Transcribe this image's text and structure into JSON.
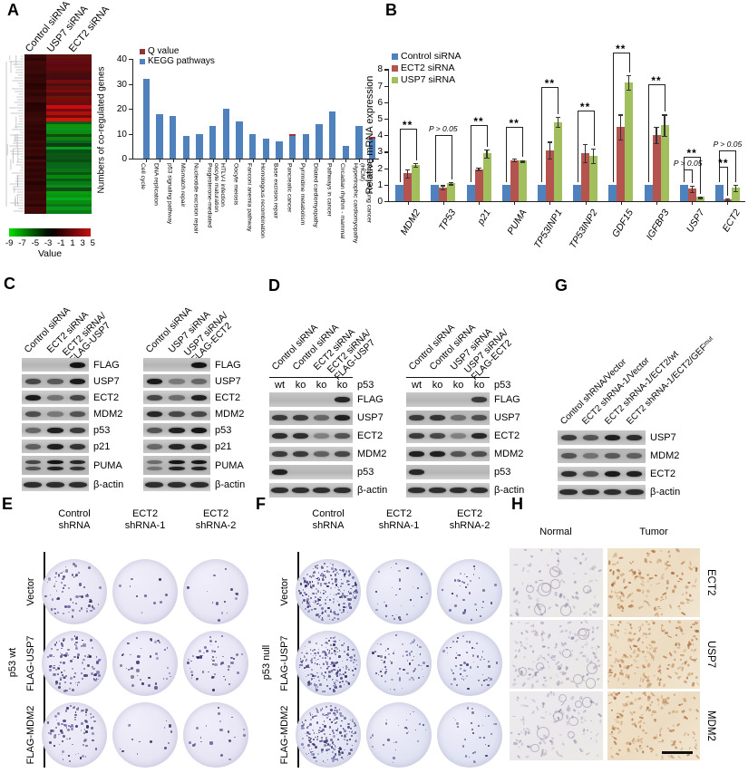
{
  "panels": {
    "A": {
      "letter": "A"
    },
    "B": {
      "letter": "B"
    },
    "C": {
      "letter": "C"
    },
    "D": {
      "letter": "D"
    },
    "E": {
      "letter": "E"
    },
    "F": {
      "letter": "F"
    },
    "G": {
      "letter": "G"
    },
    "H": {
      "letter": "H"
    }
  },
  "heatmap": {
    "col_labels": [
      "Control siRNA",
      "USP7 siRNA",
      "ECT2 siRNA"
    ],
    "scale_ticks": [
      "-9",
      "-7",
      "-5",
      "-3",
      "-1",
      "1",
      "3",
      "5"
    ],
    "scale_title": "Value",
    "colors": {
      "low": "#00d400",
      "mid": "#000000",
      "high": "#c01414",
      "control_col": "#300505"
    }
  },
  "chart_data": [
    {
      "id": "kegg",
      "type": "bar",
      "ylabel": "Numbers of co-regulated genes",
      "ylim": [
        0,
        40
      ],
      "yticks": [
        0,
        10,
        20,
        30,
        40
      ],
      "legend": [
        {
          "label": "Q value",
          "color": "#8e3634"
        },
        {
          "label": "KEGG pathways",
          "color": "#4f81bd"
        }
      ],
      "categories": [
        "Cell cycle",
        "DNA replication",
        "p53 signaling pathway",
        "Mismatch repair",
        "Nucleotide excision repair",
        "Progesterone-mediated\noocyte maturation",
        "HTLV-I infection",
        "Oocyte meiosis",
        "Fanconi anemia pathway",
        "Homologous recombination",
        "Base excision repair",
        "Pancreatic cancer",
        "Pyrimidine metabolism",
        "Dilated cardiomyopathy",
        "Pathways in cancer",
        "Circadian rhythm - mammal",
        "Hypertrophic cardiomyopathy\n(HCM)",
        "Small cell lung cancer"
      ],
      "values": [
        32,
        18,
        17,
        9,
        10,
        13,
        20,
        15,
        10,
        8,
        7,
        9,
        10,
        14,
        19,
        5,
        13,
        8
      ],
      "bar_color": "#4f81bd",
      "q_color": "#a33230",
      "q_marks": [
        11,
        17
      ]
    },
    {
      "id": "mrna",
      "type": "grouped-bar",
      "ylabel": "Relative mRNA expression",
      "ylim": [
        0,
        8
      ],
      "yticks": [
        0,
        1,
        2,
        3,
        4,
        5,
        6,
        7,
        8
      ],
      "legend": [
        {
          "label": "Control siRNA",
          "color": "#4f81bd"
        },
        {
          "label": "ECT2 siRNA",
          "color": "#b5534f"
        },
        {
          "label": "USP7 siRNA",
          "color": "#a2bf5e"
        }
      ],
      "categories": [
        "MDM2",
        "TP53",
        "p21",
        "PUMA",
        "TP53INP1",
        "TP53INP2",
        "GDF15",
        "IGFBP3",
        "USP7",
        "ECT2"
      ],
      "series": [
        {
          "name": "Control siRNA",
          "color": "#4f81bd",
          "values": [
            1,
            1,
            1,
            1,
            1,
            1,
            1,
            1,
            1,
            1
          ],
          "errors": [
            0,
            0,
            0,
            0,
            0,
            0,
            0,
            0,
            0,
            0
          ]
        },
        {
          "name": "ECT2 siRNA",
          "color": "#b5534f",
          "values": [
            1.7,
            0.85,
            1.95,
            2.5,
            3.1,
            2.9,
            4.5,
            4.0,
            0.75,
            0.12
          ],
          "errors": [
            0.25,
            0.12,
            0.07,
            0.08,
            0.5,
            0.55,
            0.75,
            0.5,
            0.2,
            0.04
          ]
        },
        {
          "name": "USP7 siRNA",
          "color": "#a2bf5e",
          "values": [
            2.2,
            1.1,
            2.9,
            2.45,
            4.8,
            2.75,
            7.2,
            4.6,
            0.25,
            0.8
          ],
          "errors": [
            0.12,
            0.08,
            0.25,
            0.05,
            0.3,
            0.45,
            0.45,
            0.65,
            0.05,
            0.18
          ]
        }
      ],
      "annotations": [
        [
          {
            "text": "**",
            "from": 0,
            "to": 2,
            "h": 4.4
          }
        ],
        [
          {
            "text": "P > 0.05",
            "from": 0,
            "to": 2,
            "h": 4.0
          }
        ],
        [
          {
            "text": "**",
            "from": 0,
            "to": 2,
            "h": 4.6
          }
        ],
        [
          {
            "text": "**",
            "from": 0,
            "to": 2,
            "h": 4.5
          }
        ],
        [
          {
            "text": "**",
            "from": 0,
            "to": 2,
            "h": 6.9
          }
        ],
        [
          {
            "text": "**",
            "from": 0,
            "to": 2,
            "h": 5.5
          }
        ],
        [
          {
            "text": "**",
            "from": 0,
            "to": 2,
            "h": 9.0
          }
        ],
        [
          {
            "text": "**",
            "from": 0,
            "to": 2,
            "h": 7.1
          }
        ],
        [
          {
            "text": "**",
            "from": 0,
            "to": 2,
            "h": 2.7
          },
          {
            "text": "P > 0.05",
            "from": 0,
            "to": 1,
            "h": 1.9
          }
        ],
        [
          {
            "text": "P > 0.05",
            "from": 0,
            "to": 2,
            "h": 3.1
          },
          {
            "text": "**",
            "from": 0,
            "to": 1,
            "h": 2.1
          }
        ]
      ]
    }
  ],
  "blots": {
    "C_left": {
      "lanes": [
        "Control siRNA",
        "ECT2 siRNA",
        "ECT2 siRNA/\nFLAG-USP7"
      ],
      "rows": [
        {
          "label": "FLAG",
          "bands": [
            0,
            0,
            1
          ]
        },
        {
          "label": "USP7",
          "bands": [
            0.6,
            0.45,
            0.95
          ]
        },
        {
          "label": "ECT2",
          "bands": [
            0.95,
            0.25,
            0.6
          ]
        },
        {
          "label": "MDM2",
          "bands": [
            0.55,
            0.2,
            0.5
          ]
        },
        {
          "label": "p53",
          "bands": [
            0.35,
            0.9,
            0.7
          ]
        },
        {
          "label": "p21",
          "bands": [
            0.4,
            0.9,
            0.75
          ]
        },
        {
          "label": "PUMA",
          "bands": [
            0.6,
            1,
            0.85
          ],
          "doublet": true
        },
        {
          "label": "β-actin",
          "bands": [
            0.8,
            0.8,
            0.8
          ]
        }
      ]
    },
    "C_right": {
      "lanes": [
        "Control siRNA",
        "USP7 siRNA",
        "USP7 siRNA/\nFLAG-ECT2"
      ],
      "rows": [
        {
          "label": "FLAG",
          "bands": [
            0,
            0,
            1
          ]
        },
        {
          "label": "USP7",
          "bands": [
            0.95,
            0.2,
            0.35
          ]
        },
        {
          "label": "ECT2",
          "bands": [
            0.6,
            0.3,
            0.9
          ]
        },
        {
          "label": "MDM2",
          "bands": [
            0.85,
            0.6,
            0.6
          ]
        },
        {
          "label": "p53",
          "bands": [
            0.5,
            0.9,
            1
          ]
        },
        {
          "label": "p21",
          "bands": [
            0.35,
            0.85,
            0.9
          ]
        },
        {
          "label": "PUMA",
          "bands": [
            0.3,
            1,
            1
          ],
          "doublet": true
        },
        {
          "label": "β-actin",
          "bands": [
            0.8,
            0.8,
            0.8
          ]
        }
      ]
    },
    "D_left": {
      "lanes": [
        "Control siRNA",
        "Control siRNA",
        "ECT2 siRNA",
        "ECT2 siRNA/\nFLAG-USP7"
      ],
      "genotypes": [
        "wt",
        "ko",
        "ko",
        "ko"
      ],
      "genotype_label": "p53",
      "rows": [
        {
          "label": "FLAG",
          "bands": [
            0,
            0,
            0,
            0.85
          ]
        },
        {
          "label": "USP7",
          "bands": [
            0.7,
            0.7,
            0.35,
            0.9
          ]
        },
        {
          "label": "ECT2",
          "bands": [
            0.8,
            0.8,
            0.15,
            0.5
          ]
        },
        {
          "label": "MDM2",
          "bands": [
            0.7,
            0.7,
            0.4,
            0.6
          ]
        },
        {
          "label": "p53",
          "bands": [
            0.9,
            0,
            0,
            0
          ]
        },
        {
          "label": "β-actin",
          "bands": [
            0.8,
            0.8,
            0.8,
            0.8
          ]
        }
      ]
    },
    "D_right": {
      "lanes": [
        "Control siRNA",
        "Control siRNA",
        "USP7 siRNA",
        "USP7 siRNA/\nFLAG-ECT2"
      ],
      "genotypes": [
        "wt",
        "ko",
        "ko",
        "ko"
      ],
      "genotype_label": "p53",
      "rows": [
        {
          "label": "FLAG",
          "bands": [
            0,
            0,
            0,
            0.7
          ]
        },
        {
          "label": "USP7",
          "bands": [
            0.7,
            0.75,
            0.3,
            0.55
          ]
        },
        {
          "label": "ECT2",
          "bands": [
            0.7,
            0.6,
            0.15,
            0.85
          ]
        },
        {
          "label": "MDM2",
          "bands": [
            0.9,
            0.9,
            0.5,
            0.55
          ]
        },
        {
          "label": "p53",
          "bands": [
            0.85,
            0,
            0,
            0
          ]
        },
        {
          "label": "β-actin",
          "bands": [
            0.8,
            0.8,
            0.8,
            0.8
          ]
        }
      ]
    },
    "G": {
      "lanes": [
        "Control shRNA/Vector",
        "ECT2 shRNA-1/Vector",
        "ECT2 shRNA-1/ECT2/wt",
        "ECT2 shRNA-1/ECT2/GEFᵐᵘᵗ"
      ],
      "rows": [
        {
          "label": "USP7",
          "bands": [
            0.7,
            0.5,
            0.9,
            0.8
          ]
        },
        {
          "label": "MDM2",
          "bands": [
            0.5,
            0.25,
            0.45,
            0.4
          ]
        },
        {
          "label": "ECT2",
          "bands": [
            0.8,
            0.5,
            0.95,
            0.9
          ]
        },
        {
          "label": "β-actin",
          "bands": [
            0.8,
            0.8,
            0.8,
            0.8
          ]
        }
      ]
    }
  },
  "colonies": {
    "E": {
      "col_labels": [
        "Control\nshRNA",
        "ECT2\nshRNA-1",
        "ECT2\nshRNA-2"
      ],
      "row_labels": [
        "Vector",
        "FLAG-USP7",
        "FLAG-MDM2"
      ],
      "side_label": "p53 wt",
      "densities": [
        [
          70,
          10,
          14
        ],
        [
          110,
          40,
          52
        ],
        [
          85,
          14,
          20
        ]
      ]
    },
    "F": {
      "col_labels": [
        "Control\nshRNA",
        "ECT2\nshRNA-1",
        "ECT2\nshRNA-2"
      ],
      "row_labels": [
        "Vector",
        "FLAG-USP7",
        "FLAG-MDM2"
      ],
      "side_label": "p53 null",
      "densities": [
        [
          260,
          30,
          38
        ],
        [
          230,
          70,
          62
        ],
        [
          220,
          26,
          30
        ]
      ]
    }
  },
  "ihc": {
    "col_labels": [
      "Normal",
      "Tumor"
    ],
    "row_labels": [
      "ECT2",
      "USP7",
      "MDM2"
    ],
    "cells": [
      [
        {
          "type": "normal",
          "speckles": 90
        },
        {
          "type": "tumor",
          "speckles": 150
        }
      ],
      [
        {
          "type": "normal",
          "speckles": 140
        },
        {
          "type": "tumor",
          "speckles": 180
        }
      ],
      [
        {
          "type": "normal",
          "speckles": 100
        },
        {
          "type": "tumor",
          "speckles": 160
        }
      ]
    ],
    "scale_bar_cell": [
      2,
      1
    ]
  },
  "palette": {
    "plate_bg": "#e8e6f4",
    "plate_bg_dense": "#e1e4f3",
    "colony_colors": [
      "#302d5c",
      "#45427c",
      "#5a5694",
      "#6b68a4"
    ],
    "ihc_normal_base": "#eae8ea",
    "ihc_tumor_base": "#ecdcc2",
    "ihc_normal_speckles": [
      "#b6adc2",
      "#a89dba",
      "#c6bfd0",
      "#9089aa"
    ],
    "ihc_tumor_speckles": [
      "#c08a55",
      "#b07341",
      "#d0a678",
      "#a2643a",
      "#c99a66"
    ]
  }
}
